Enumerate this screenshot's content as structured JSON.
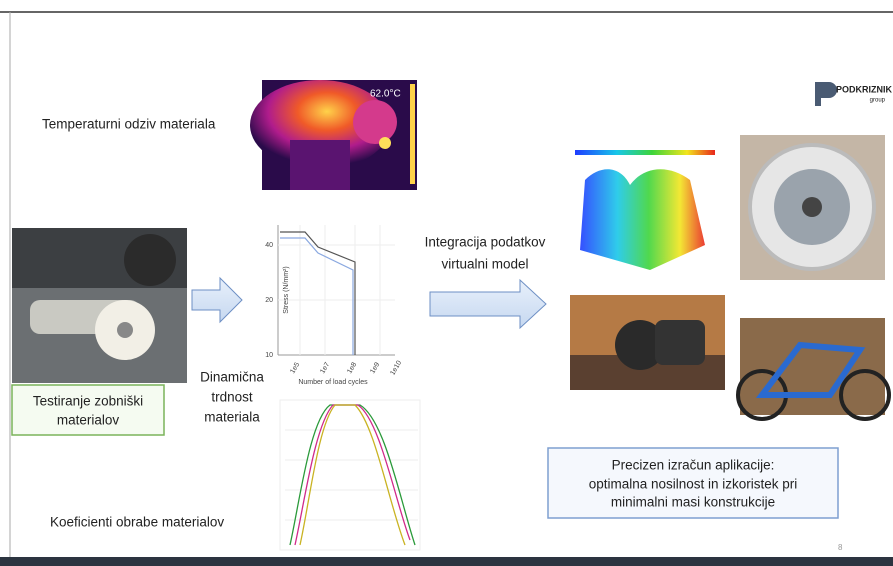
{
  "logo": {
    "name": "PODKRIZNIK",
    "sub": "group"
  },
  "thermal": {
    "caption": "Temperaturni odziv materiala",
    "reading": "62.0°C"
  },
  "testing": {
    "lines": [
      "Testiranje zobniški",
      "materialov"
    ]
  },
  "fatigue": {
    "lines": [
      "Dinamična",
      "trdnost",
      "materiala"
    ],
    "y_axis_label": "Stress (N/mm²)",
    "x_axis_label": "Number of load cycles",
    "y_ticks": [
      "40",
      "20",
      "10"
    ],
    "x_ticks": [
      "1e5",
      "1e7",
      "1e8",
      "1e9",
      "1e10"
    ]
  },
  "wear": {
    "caption": "Koeficienti obrabe materialov"
  },
  "integration": {
    "lines": [
      "Integracija podatkov",
      "virtualni model"
    ]
  },
  "conclusion": {
    "lines": [
      "Precizen izračun aplikacije:",
      "optimalna nosilnost in izkoristek pri",
      "minimalni masi konstrukcije"
    ]
  },
  "page_number": "8"
}
